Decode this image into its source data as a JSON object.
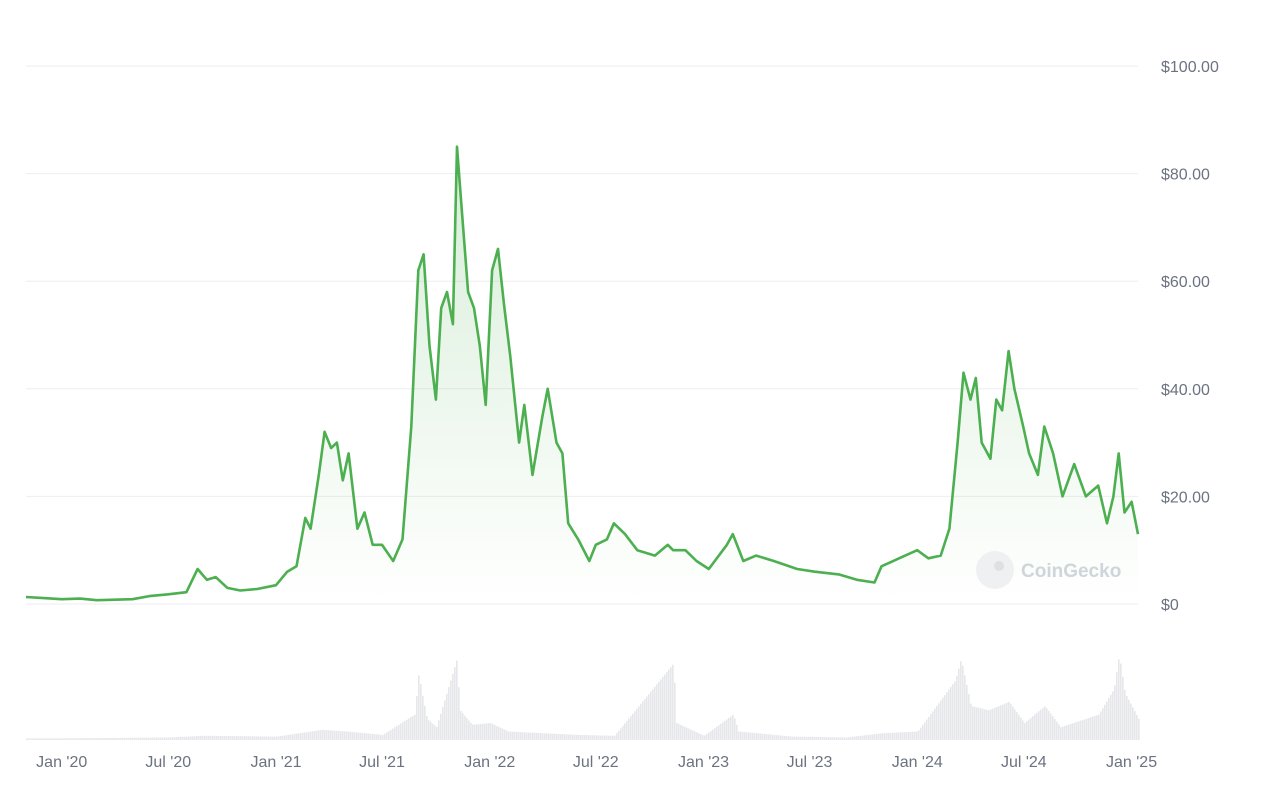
{
  "chart_data": {
    "type": "area",
    "title": "",
    "xlabel": "",
    "ylabel": "",
    "ylim": [
      0,
      100
    ],
    "y_ticks": [
      "$0",
      "$20.00",
      "$40.00",
      "$60.00",
      "$80.00",
      "$100.00"
    ],
    "y_tick_values": [
      0,
      20,
      40,
      60,
      80,
      100
    ],
    "x_ticks": [
      "Jan '20",
      "Jul '20",
      "Jan '21",
      "Jul '21",
      "Jan '22",
      "Jul '22",
      "Jan '23",
      "Jul '23",
      "Jan '24",
      "Jul '24",
      "Jan '25"
    ],
    "x_tick_dates": [
      "2020-01-01",
      "2020-07-01",
      "2021-01-01",
      "2021-07-01",
      "2022-01-01",
      "2022-07-01",
      "2023-01-01",
      "2023-07-01",
      "2024-01-01",
      "2024-07-01",
      "2025-01-01"
    ],
    "x_range": [
      "2019-11-01",
      "2025-01-12"
    ],
    "grid": true,
    "line_color": "#4caf50",
    "volume_color": "#e5e7eb",
    "watermark": "CoinGecko",
    "series": [
      {
        "type": "price",
        "points": [
          [
            "2019-11-01",
            1.3
          ],
          [
            "2019-12-01",
            1.1
          ],
          [
            "2020-01-01",
            0.9
          ],
          [
            "2020-02-01",
            1.0
          ],
          [
            "2020-03-01",
            0.7
          ],
          [
            "2020-04-01",
            0.8
          ],
          [
            "2020-05-01",
            0.9
          ],
          [
            "2020-06-01",
            1.5
          ],
          [
            "2020-07-01",
            1.8
          ],
          [
            "2020-08-01",
            2.2
          ],
          [
            "2020-08-20",
            6.5
          ],
          [
            "2020-09-05",
            4.5
          ],
          [
            "2020-09-20",
            5.0
          ],
          [
            "2020-10-10",
            3.0
          ],
          [
            "2020-11-01",
            2.5
          ],
          [
            "2020-12-01",
            2.8
          ],
          [
            "2021-01-01",
            3.5
          ],
          [
            "2021-01-20",
            6.0
          ],
          [
            "2021-02-05",
            7.0
          ],
          [
            "2021-02-20",
            16.0
          ],
          [
            "2021-03-01",
            14.0
          ],
          [
            "2021-03-15",
            24.0
          ],
          [
            "2021-03-25",
            32.0
          ],
          [
            "2021-04-05",
            29.0
          ],
          [
            "2021-04-15",
            30.0
          ],
          [
            "2021-04-25",
            23.0
          ],
          [
            "2021-05-05",
            28.0
          ],
          [
            "2021-05-20",
            14.0
          ],
          [
            "2021-06-01",
            17.0
          ],
          [
            "2021-06-15",
            11.0
          ],
          [
            "2021-07-01",
            11.0
          ],
          [
            "2021-07-20",
            8.0
          ],
          [
            "2021-08-05",
            12.0
          ],
          [
            "2021-08-20",
            33.0
          ],
          [
            "2021-09-01",
            62.0
          ],
          [
            "2021-09-10",
            65.0
          ],
          [
            "2021-09-20",
            48.0
          ],
          [
            "2021-10-01",
            38.0
          ],
          [
            "2021-10-10",
            55.0
          ],
          [
            "2021-10-20",
            58.0
          ],
          [
            "2021-10-30",
            52.0
          ],
          [
            "2021-11-06",
            85.0
          ],
          [
            "2021-11-15",
            72.0
          ],
          [
            "2021-11-25",
            58.0
          ],
          [
            "2021-12-05",
            55.0
          ],
          [
            "2021-12-15",
            48.0
          ],
          [
            "2021-12-25",
            37.0
          ],
          [
            "2022-01-05",
            62.0
          ],
          [
            "2022-01-15",
            66.0
          ],
          [
            "2022-01-25",
            56.0
          ],
          [
            "2022-02-05",
            46.0
          ],
          [
            "2022-02-20",
            30.0
          ],
          [
            "2022-03-01",
            37.0
          ],
          [
            "2022-03-15",
            24.0
          ],
          [
            "2022-04-01",
            35.0
          ],
          [
            "2022-04-10",
            40.0
          ],
          [
            "2022-04-25",
            30.0
          ],
          [
            "2022-05-05",
            28.0
          ],
          [
            "2022-05-15",
            15.0
          ],
          [
            "2022-06-01",
            12.0
          ],
          [
            "2022-06-20",
            8.0
          ],
          [
            "2022-07-01",
            11.0
          ],
          [
            "2022-07-20",
            12.0
          ],
          [
            "2022-08-01",
            15.0
          ],
          [
            "2022-08-20",
            13.0
          ],
          [
            "2022-09-10",
            10.0
          ],
          [
            "2022-10-10",
            9.0
          ],
          [
            "2022-11-01",
            11.0
          ],
          [
            "2022-11-10",
            10.0
          ],
          [
            "2022-12-01",
            10.0
          ],
          [
            "2022-12-20",
            8.0
          ],
          [
            "2023-01-10",
            6.5
          ],
          [
            "2023-02-10",
            11.0
          ],
          [
            "2023-02-20",
            13.0
          ],
          [
            "2023-03-10",
            8.0
          ],
          [
            "2023-04-01",
            9.0
          ],
          [
            "2023-05-01",
            8.0
          ],
          [
            "2023-06-10",
            6.5
          ],
          [
            "2023-07-10",
            6.0
          ],
          [
            "2023-08-20",
            5.5
          ],
          [
            "2023-09-20",
            4.5
          ],
          [
            "2023-10-20",
            4.0
          ],
          [
            "2023-11-01",
            7.0
          ],
          [
            "2023-12-01",
            8.5
          ],
          [
            "2024-01-01",
            10.0
          ],
          [
            "2024-01-20",
            8.5
          ],
          [
            "2024-02-10",
            9.0
          ],
          [
            "2024-02-25",
            14.0
          ],
          [
            "2024-03-10",
            30.0
          ],
          [
            "2024-03-20",
            43.0
          ],
          [
            "2024-04-01",
            38.0
          ],
          [
            "2024-04-10",
            42.0
          ],
          [
            "2024-04-20",
            30.0
          ],
          [
            "2024-05-05",
            27.0
          ],
          [
            "2024-05-15",
            38.0
          ],
          [
            "2024-05-25",
            36.0
          ],
          [
            "2024-06-05",
            47.0
          ],
          [
            "2024-06-15",
            40.0
          ],
          [
            "2024-06-30",
            33.0
          ],
          [
            "2024-07-10",
            28.0
          ],
          [
            "2024-07-25",
            24.0
          ],
          [
            "2024-08-05",
            33.0
          ],
          [
            "2024-08-20",
            28.0
          ],
          [
            "2024-09-05",
            20.0
          ],
          [
            "2024-09-25",
            26.0
          ],
          [
            "2024-10-15",
            20.0
          ],
          [
            "2024-11-05",
            22.0
          ],
          [
            "2024-11-20",
            15.0
          ],
          [
            "2024-12-01",
            20.0
          ],
          [
            "2024-12-10",
            28.0
          ],
          [
            "2024-12-20",
            17.0
          ],
          [
            "2025-01-01",
            19.0
          ],
          [
            "2025-01-12",
            13.0
          ]
        ]
      },
      {
        "type": "volume",
        "note_unit": "relative 0-1",
        "points": [
          [
            "2019-11-01",
            0.02
          ],
          [
            "2020-01-01",
            0.02
          ],
          [
            "2020-07-01",
            0.03
          ],
          [
            "2020-09-01",
            0.05
          ],
          [
            "2021-01-01",
            0.04
          ],
          [
            "2021-03-20",
            0.12
          ],
          [
            "2021-05-01",
            0.1
          ],
          [
            "2021-07-01",
            0.06
          ],
          [
            "2021-08-25",
            0.3
          ],
          [
            "2021-09-01",
            0.8
          ],
          [
            "2021-09-05",
            0.6
          ],
          [
            "2021-09-15",
            0.25
          ],
          [
            "2021-10-01",
            0.15
          ],
          [
            "2021-11-05",
            0.95
          ],
          [
            "2021-11-10",
            0.35
          ],
          [
            "2021-12-01",
            0.18
          ],
          [
            "2022-01-01",
            0.2
          ],
          [
            "2022-02-01",
            0.1
          ],
          [
            "2022-04-01",
            0.08
          ],
          [
            "2022-06-01",
            0.06
          ],
          [
            "2022-08-01",
            0.05
          ],
          [
            "2022-11-10",
            0.9
          ],
          [
            "2022-11-15",
            0.2
          ],
          [
            "2023-01-01",
            0.05
          ],
          [
            "2023-02-20",
            0.3
          ],
          [
            "2023-03-01",
            0.1
          ],
          [
            "2023-06-01",
            0.04
          ],
          [
            "2023-09-01",
            0.03
          ],
          [
            "2023-11-01",
            0.08
          ],
          [
            "2024-01-01",
            0.1
          ],
          [
            "2024-03-05",
            0.7
          ],
          [
            "2024-03-15",
            0.95
          ],
          [
            "2024-04-01",
            0.4
          ],
          [
            "2024-05-01",
            0.35
          ],
          [
            "2024-06-05",
            0.45
          ],
          [
            "2024-07-01",
            0.2
          ],
          [
            "2024-08-05",
            0.4
          ],
          [
            "2024-09-01",
            0.15
          ],
          [
            "2024-11-05",
            0.3
          ],
          [
            "2024-12-01",
            0.6
          ],
          [
            "2024-12-10",
            1.0
          ],
          [
            "2024-12-20",
            0.55
          ],
          [
            "2025-01-12",
            0.25
          ]
        ]
      }
    ]
  }
}
